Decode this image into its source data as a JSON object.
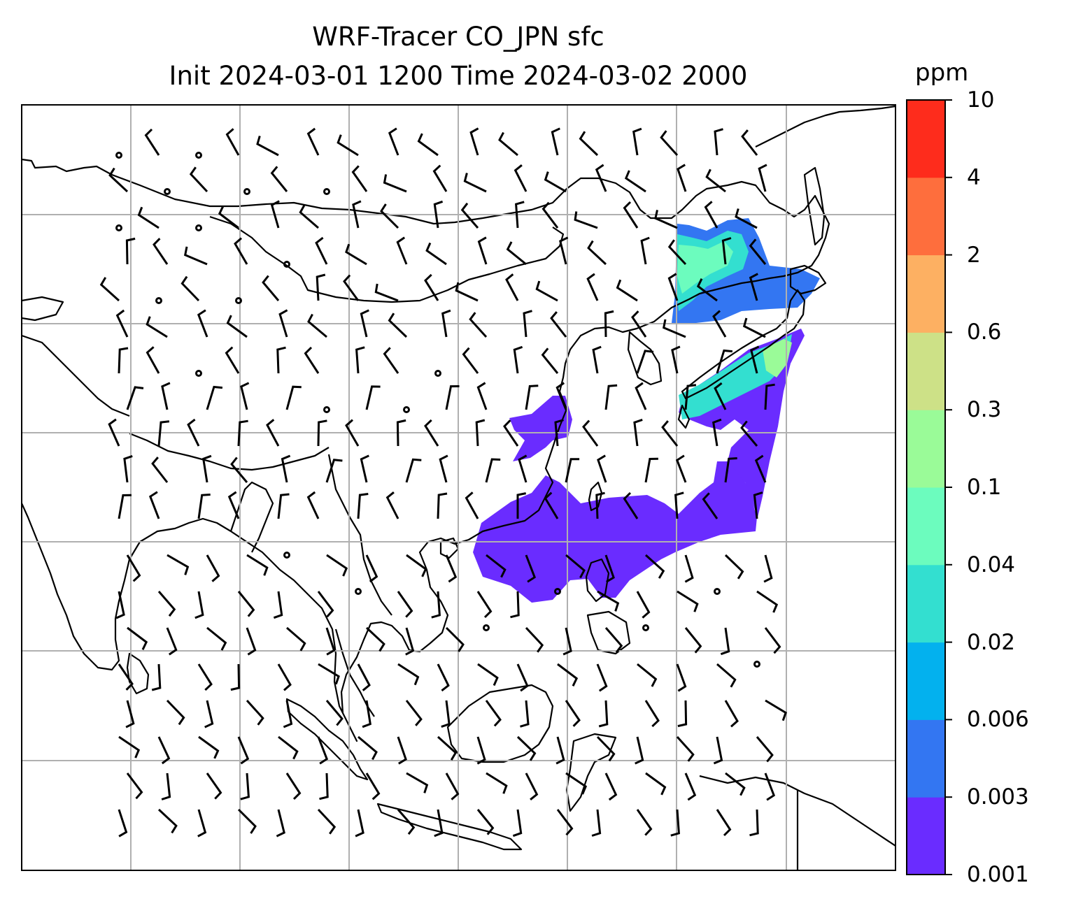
{
  "title": {
    "line1": "WRF-Tracer CO_JPN sfc",
    "line2": "Init 2024-03-01 1200 Time 2024-03-02 2000"
  },
  "colorbar": {
    "unit": "ppm",
    "levels": [
      "0.001",
      "0.003",
      "0.006",
      "0.02",
      "0.04",
      "0.1",
      "0.3",
      "0.6",
      "2",
      "4",
      "10"
    ],
    "colors": [
      "#6a2cff",
      "#3376f2",
      "#03b1ee",
      "#33dfd0",
      "#6cfcbe",
      "#9afb98",
      "#cde187",
      "#fdb062",
      "#fe6e3d",
      "#fe2c1c"
    ]
  },
  "map": {
    "frame_color": "#000000",
    "grid_color": "#b0b0b0",
    "coast_color": "#000000",
    "barb_color": "#000000",
    "plume_dominant_color": "#6a2cff",
    "plume_secondary_color": "#3376f2",
    "plume_peak_colors": [
      "#33dfd0",
      "#6cfcbe",
      "#9afb98"
    ]
  }
}
